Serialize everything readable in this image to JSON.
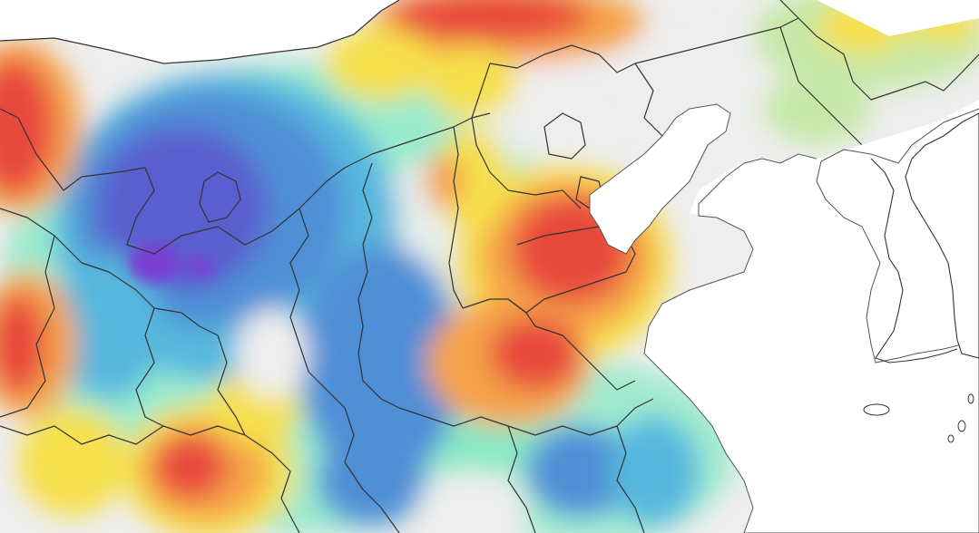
{
  "map": {
    "legend": null,
    "colors": {
      "purple": "#7a3fd4",
      "indigo": "#5a5ecf",
      "blue": "#4f8fd6",
      "light_blue": "#56b7dd",
      "cyan": "#4fd8c8",
      "mint": "#7fe8c2",
      "pale_green": "#c6e8a8",
      "grey_white": "#eeeeee",
      "yellow": "#f6e04c",
      "orange": "#f5a24a",
      "red": "#e8483c",
      "border": "#333333",
      "coast": "#555555"
    },
    "regions": [
      "northwest-red-hotspot",
      "inner-mongolia-blue-zone",
      "purple-core",
      "hebei-shandong-red-hotspot",
      "henan-red-hotspot",
      "southwest-red-hotspot",
      "south-blue-zone",
      "northeast-yellow-zone",
      "bohai-sea",
      "yellow-sea",
      "korean-peninsula"
    ]
  }
}
